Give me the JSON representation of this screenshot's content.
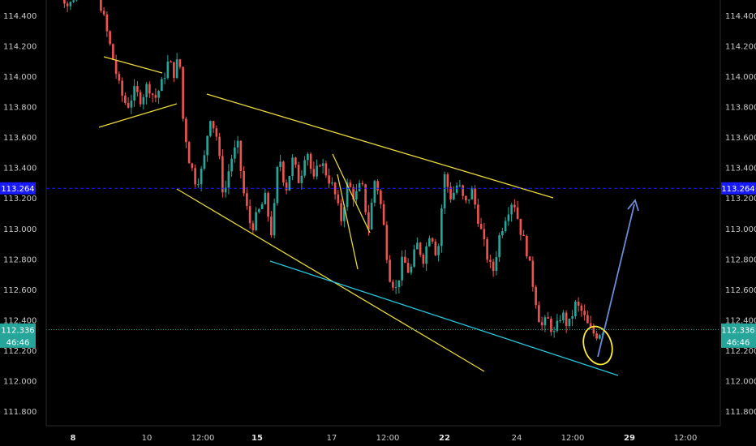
{
  "chart_data": {
    "type": "candlestick",
    "y_axis": {
      "min": 111.7,
      "max": 114.5,
      "ticks": [
        "114.400",
        "114.200",
        "114.000",
        "113.800",
        "113.600",
        "113.400",
        "113.200",
        "113.000",
        "112.800",
        "112.600",
        "112.400",
        "112.200",
        "112.000",
        "111.800"
      ],
      "tick_values": [
        114.4,
        114.2,
        114.0,
        113.8,
        113.6,
        113.4,
        113.2,
        113.0,
        112.8,
        112.6,
        112.4,
        112.2,
        112.0,
        111.8
      ]
    },
    "x_axis": {
      "ticks": [
        {
          "label": "8",
          "bold": true
        },
        {
          "label": "10",
          "bold": false
        },
        {
          "label": "12:00",
          "bold": false
        },
        {
          "label": "15",
          "bold": true
        },
        {
          "label": "17",
          "bold": false
        },
        {
          "label": "12:00",
          "bold": false
        },
        {
          "label": "22",
          "bold": true
        },
        {
          "label": "24",
          "bold": false
        },
        {
          "label": "12:00",
          "bold": false
        },
        {
          "label": "29",
          "bold": true
        },
        {
          "label": "12:00",
          "bold": false
        }
      ]
    },
    "price_lines": [
      {
        "value": 113.264,
        "label": "113.264",
        "color": "#1a1aff",
        "style": "dashed"
      },
      {
        "value": 112.336,
        "label": "112.336",
        "sublabel": "46:46",
        "color": "#26a69a",
        "style": "dotted"
      }
    ],
    "colors": {
      "up": "#26a69a",
      "down": "#ef5350",
      "trendline": "#e8d83a",
      "support": "#26c6da",
      "arrow": "#6a8cd8",
      "circle": "#ffeb3b"
    },
    "path_points": [
      [
        0,
        114.6
      ],
      [
        1.5,
        114.45
      ],
      [
        3,
        114.6
      ],
      [
        6,
        114.5
      ],
      [
        8,
        114.1
      ],
      [
        9,
        113.9
      ],
      [
        10,
        113.8
      ],
      [
        11,
        113.9
      ],
      [
        12,
        113.85
      ],
      [
        13,
        113.95
      ],
      [
        14,
        113.85
      ],
      [
        15,
        113.95
      ],
      [
        16,
        114.1
      ],
      [
        17,
        114.0
      ],
      [
        17.5,
        114.2
      ],
      [
        18,
        113.75
      ],
      [
        19,
        113.45
      ],
      [
        20,
        113.3
      ],
      [
        21,
        113.4
      ],
      [
        22,
        113.75
      ],
      [
        23,
        113.6
      ],
      [
        24,
        113.2
      ],
      [
        25,
        113.45
      ],
      [
        26,
        113.55
      ],
      [
        27,
        113.2
      ],
      [
        28,
        113.0
      ],
      [
        29,
        113.1
      ],
      [
        30,
        113.2
      ],
      [
        31,
        112.95
      ],
      [
        32,
        113.5
      ],
      [
        33,
        113.25
      ],
      [
        34,
        113.45
      ],
      [
        35,
        113.3
      ],
      [
        36,
        113.55
      ],
      [
        37,
        113.3
      ],
      [
        38,
        113.45
      ],
      [
        39,
        113.35
      ],
      [
        40,
        113.25
      ],
      [
        41,
        113.05
      ],
      [
        42,
        113.3
      ],
      [
        43,
        113.2
      ],
      [
        44,
        113.3
      ],
      [
        45,
        113.0
      ],
      [
        46,
        113.35
      ],
      [
        47,
        113.1
      ],
      [
        48,
        112.7
      ],
      [
        49,
        112.6
      ],
      [
        50,
        112.8
      ],
      [
        51,
        112.7
      ],
      [
        52,
        112.9
      ],
      [
        53,
        112.8
      ],
      [
        54,
        113.0
      ],
      [
        55,
        112.8
      ],
      [
        56,
        113.35
      ],
      [
        57,
        113.2
      ],
      [
        58,
        113.3
      ],
      [
        59,
        113.15
      ],
      [
        60,
        113.25
      ],
      [
        61,
        113.05
      ],
      [
        62,
        112.85
      ],
      [
        63,
        112.7
      ],
      [
        64,
        112.95
      ],
      [
        65,
        113.1
      ],
      [
        66,
        113.2
      ],
      [
        67,
        113.0
      ],
      [
        68,
        112.85
      ],
      [
        69,
        112.6
      ],
      [
        70,
        112.35
      ],
      [
        71,
        112.4
      ],
      [
        72,
        112.3
      ],
      [
        73,
        112.45
      ],
      [
        74,
        112.35
      ],
      [
        75,
        112.5
      ],
      [
        76,
        112.45
      ],
      [
        77,
        112.34
      ],
      [
        78,
        112.3
      ],
      [
        79,
        112.336
      ]
    ]
  },
  "annotations": {
    "price_tag_blue": "113.264",
    "price_tag_green": "112.336",
    "countdown": "46:46"
  }
}
